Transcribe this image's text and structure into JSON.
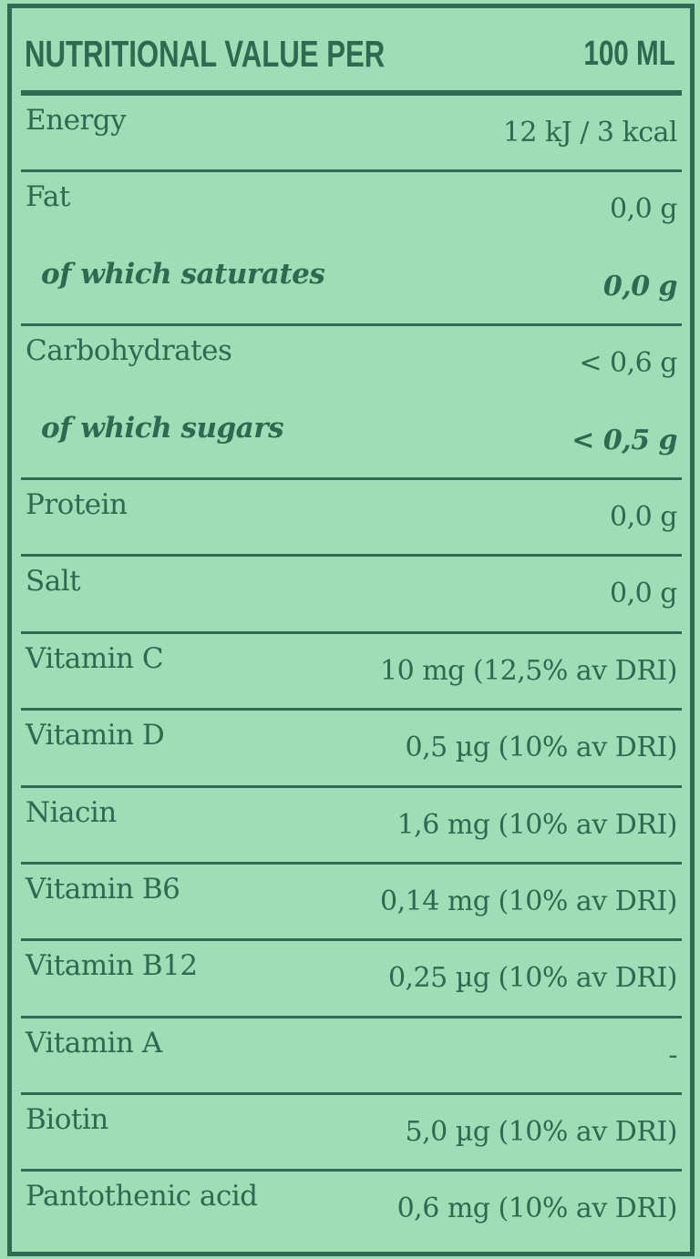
{
  "colors": {
    "background": "#9eddb5",
    "ink": "#2c6a51"
  },
  "header": {
    "title": "NUTRITIONAL VALUE PER",
    "unit": "100 ML"
  },
  "rows": [
    {
      "label": "Energy",
      "value": "12 kJ / 3 kcal",
      "sub": false,
      "rule_after": true
    },
    {
      "label": "Fat",
      "value": "0,0 g",
      "sub": false,
      "rule_after": false
    },
    {
      "label": "of which saturates",
      "value": "0,0 g",
      "sub": true,
      "rule_after": true
    },
    {
      "label": "Carbohydrates",
      "value": "< 0,6 g",
      "sub": false,
      "rule_after": false
    },
    {
      "label": "of which sugars",
      "value": "< 0,5 g",
      "sub": true,
      "rule_after": true
    },
    {
      "label": "Protein",
      "value": "0,0 g",
      "sub": false,
      "rule_after": true
    },
    {
      "label": "Salt",
      "value": "0,0 g",
      "sub": false,
      "rule_after": true
    },
    {
      "label": "Vitamin C",
      "value": "10 mg (12,5% av DRI)",
      "sub": false,
      "rule_after": true
    },
    {
      "label": "Vitamin D",
      "value": "0,5 µg (10% av DRI)",
      "sub": false,
      "rule_after": true
    },
    {
      "label": "Niacin",
      "value": "1,6 mg (10% av DRI)",
      "sub": false,
      "rule_after": true
    },
    {
      "label": "Vitamin B6",
      "value": "0,14 mg (10% av DRI)",
      "sub": false,
      "rule_after": true
    },
    {
      "label": "Vitamin B12",
      "value": "0,25 µg (10% av DRI)",
      "sub": false,
      "rule_after": true
    },
    {
      "label": "Vitamin A",
      "value": "-",
      "sub": false,
      "rule_after": true
    },
    {
      "label": "Biotin",
      "value": "5,0 µg (10% av DRI)",
      "sub": false,
      "rule_after": true
    },
    {
      "label": "Pantothenic acid",
      "value": "0,6 mg (10% av DRI)",
      "sub": false,
      "rule_after": false
    }
  ]
}
